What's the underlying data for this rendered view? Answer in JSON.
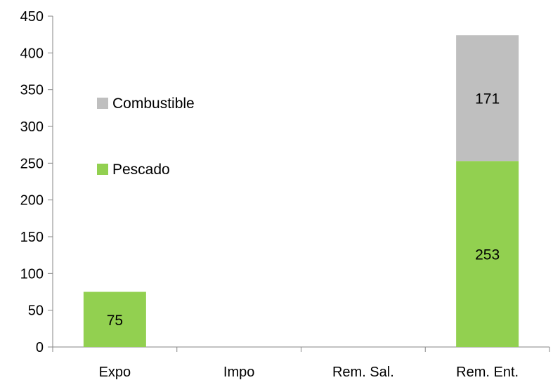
{
  "chart_data": {
    "type": "bar",
    "stacked": true,
    "categories": [
      "Expo",
      "Impo",
      "Rem. Sal.",
      "Rem. Ent."
    ],
    "series": [
      {
        "name": "Pescado",
        "color": "#92D050",
        "values": [
          75,
          0,
          0,
          253
        ],
        "labels": [
          "75",
          "",
          "",
          "253"
        ]
      },
      {
        "name": "Combustible",
        "color": "#BFBFBF",
        "values": [
          0,
          0,
          0,
          171
        ],
        "labels": [
          "",
          "",
          "",
          "171"
        ]
      }
    ],
    "yticks": [
      0,
      50,
      100,
      150,
      200,
      250,
      300,
      350,
      400,
      450
    ],
    "ylim": [
      0,
      450
    ],
    "grid": false,
    "legend": {
      "placement": "upper-left inside plot",
      "entries": [
        {
          "name": "Combustible",
          "color": "#BFBFBF"
        },
        {
          "name": "Pescado",
          "color": "#92D050"
        }
      ]
    },
    "title": "",
    "xlabel": "",
    "ylabel": ""
  }
}
